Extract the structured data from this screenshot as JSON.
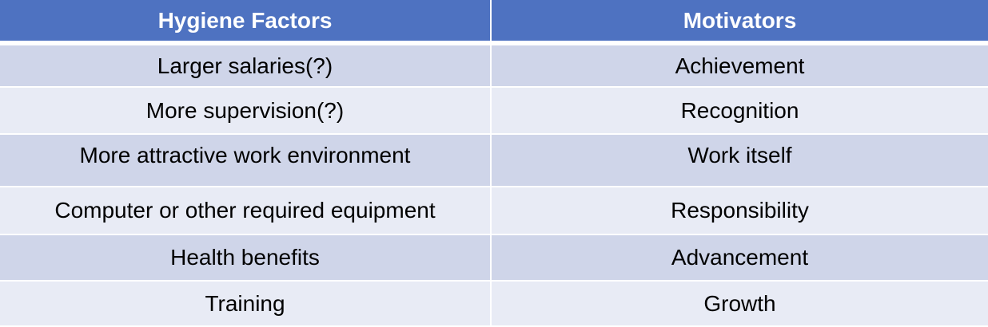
{
  "table": {
    "headers": [
      "Hygiene Factors",
      "Motivators"
    ],
    "rows": [
      [
        "Larger salaries(?)",
        "Achievement"
      ],
      [
        "More supervision(?)",
        "Recognition"
      ],
      [
        "More attractive work environment",
        "Work itself"
      ],
      [
        "Computer or other required equipment",
        "Responsibility"
      ],
      [
        "Health benefits",
        "Advancement"
      ],
      [
        "Training",
        "Growth"
      ]
    ]
  },
  "colors": {
    "header": "#4e72c1",
    "row_dark": "#cfd5e9",
    "row_light": "#e8ebf5"
  }
}
